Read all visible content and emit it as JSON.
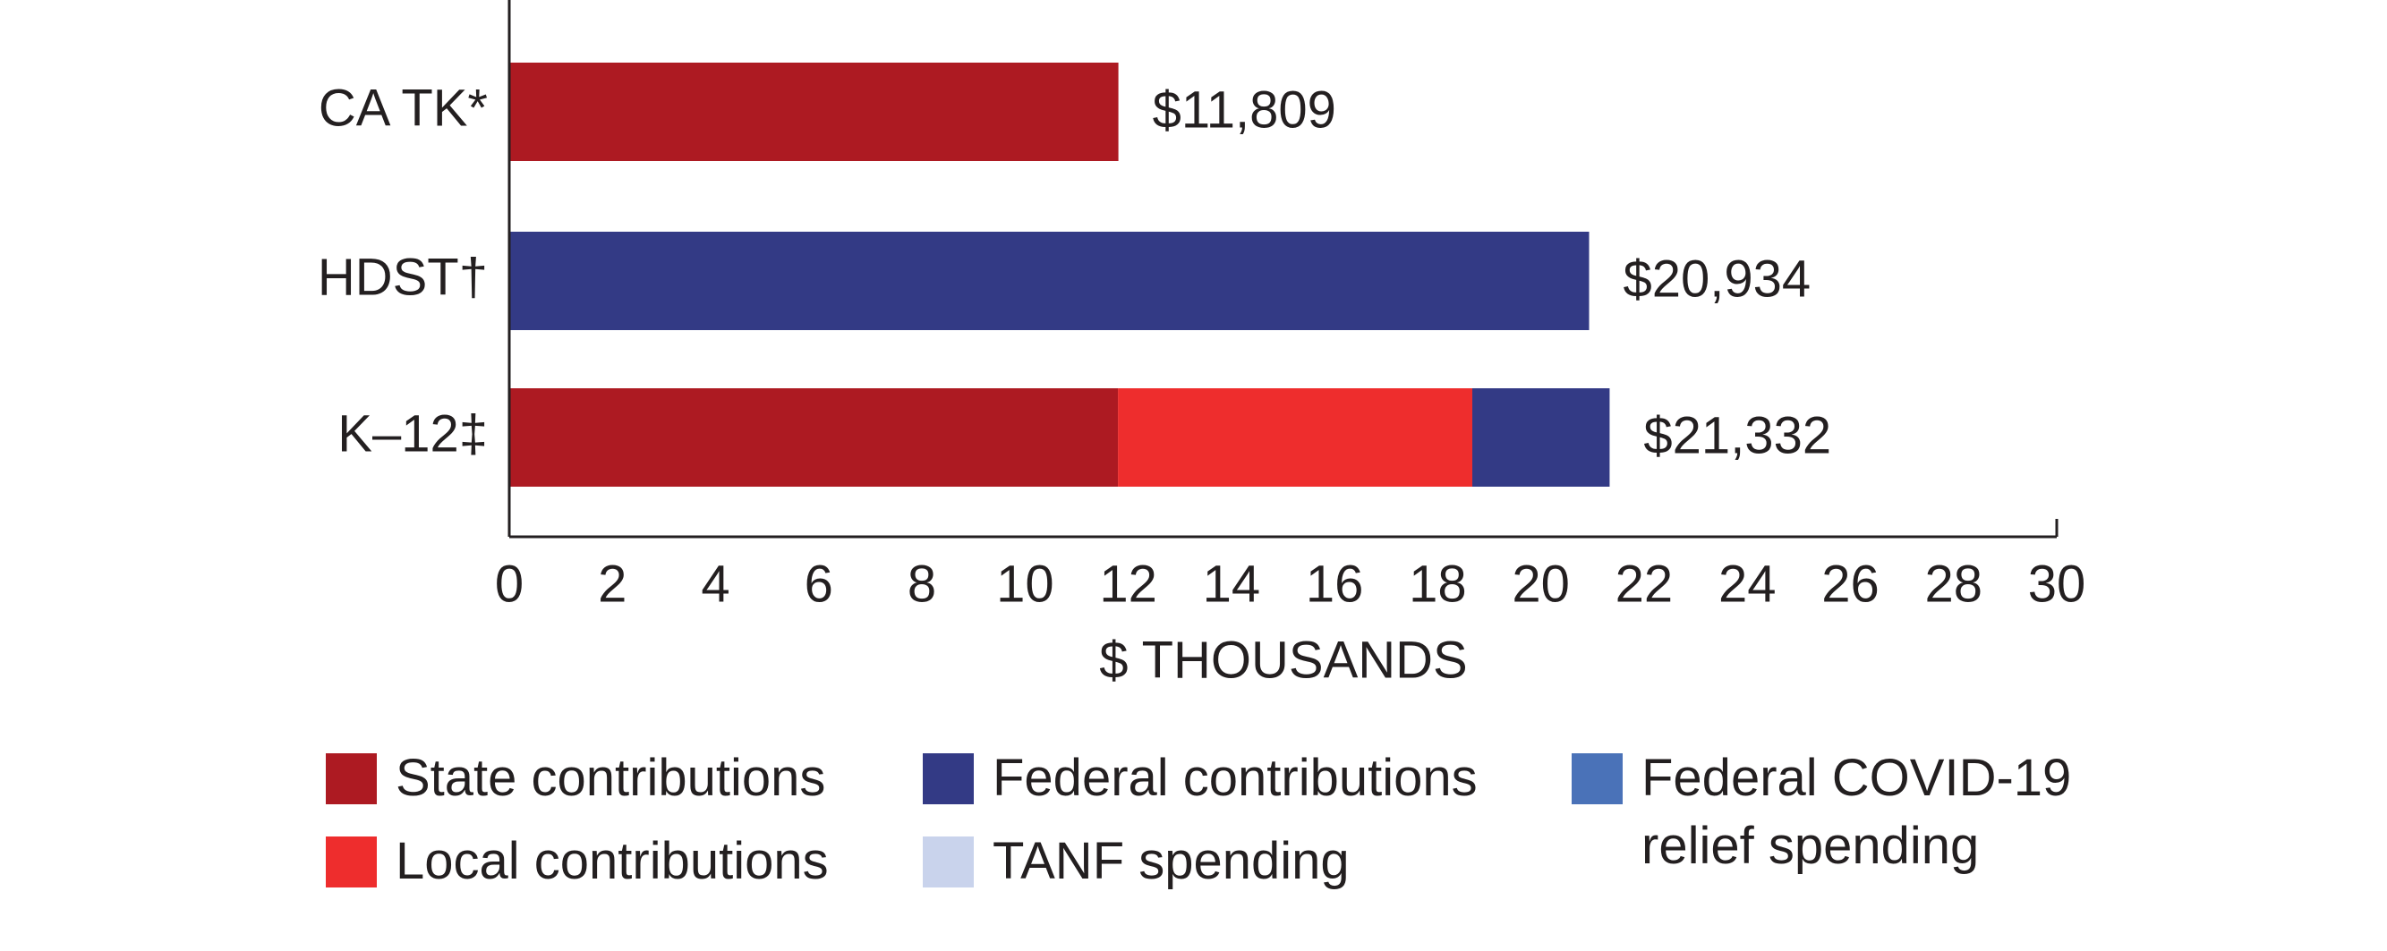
{
  "chart_data": {
    "type": "stacked-bar-horizontal",
    "categories": [
      "CA TK*",
      "HDST†",
      "K–12‡"
    ],
    "series": [
      {
        "name": "State contributions",
        "color": "#ad1a22",
        "values": [
          11.809,
          null,
          11.8
        ]
      },
      {
        "name": "Local contributions",
        "color": "#ee2d2d",
        "values": [
          null,
          null,
          6.87
        ]
      },
      {
        "name": "Federal contributions",
        "color": "#333a85",
        "values": [
          null,
          20.934,
          2.662
        ]
      },
      {
        "name": "Federal COVID-19 relief spending",
        "color": "#4a72b8",
        "values": [
          null,
          null,
          null
        ]
      },
      {
        "name": "TANF spending",
        "color": "#c9d3ec",
        "values": [
          null,
          null,
          null
        ]
      }
    ],
    "totals": [
      11.809,
      20.934,
      21.332
    ],
    "total_labels": [
      "$11,809",
      "$20,934",
      "$21,332"
    ],
    "xlabel": "$ THOUSANDS",
    "xlim": [
      0,
      30
    ],
    "xticks": [
      0,
      2,
      4,
      6,
      8,
      10,
      12,
      14,
      16,
      18,
      20,
      22,
      24,
      26,
      28,
      30
    ],
    "grid": false
  }
}
